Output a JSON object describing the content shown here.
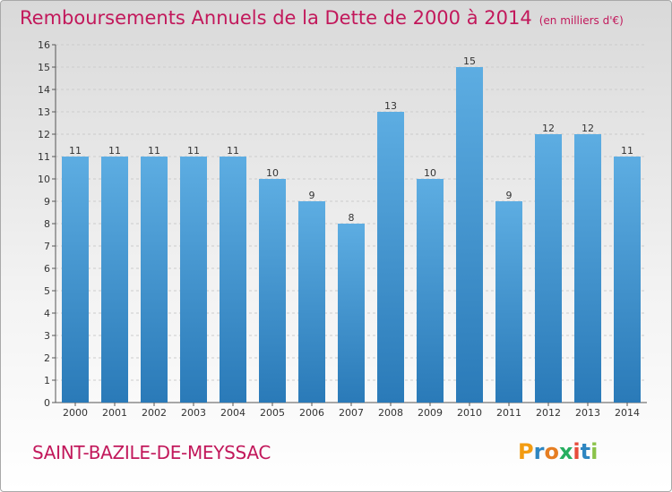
{
  "header": {
    "title": "Remboursements Annuels de la Dette de 2000 à 2014",
    "subtitle": "(en milliers d'€)"
  },
  "footer": {
    "commune": "SAINT-BAZILE-DE-MEYSSAC",
    "logo": "Proxiti"
  },
  "colors": {
    "title": "#c2185b",
    "bar_top": "#5dade2",
    "bar_bottom": "#2a7ab8",
    "grid": "#cccccc"
  },
  "chart_data": {
    "type": "bar",
    "title": "Remboursements Annuels de la Dette de 2000 à 2014",
    "subtitle": "(en milliers d'€)",
    "xlabel": "",
    "ylabel": "",
    "categories": [
      "2000",
      "2001",
      "2002",
      "2003",
      "2004",
      "2005",
      "2006",
      "2007",
      "2008",
      "2009",
      "2010",
      "2011",
      "2012",
      "2013",
      "2014"
    ],
    "values": [
      11,
      11,
      11,
      11,
      11,
      10,
      9,
      8,
      13,
      10,
      15,
      9,
      12,
      12,
      11
    ],
    "ylim": [
      0,
      16
    ],
    "yticks": [
      0,
      1,
      2,
      3,
      4,
      5,
      6,
      7,
      8,
      9,
      10,
      11,
      12,
      13,
      14,
      15,
      16
    ],
    "grid": true,
    "legend": "none"
  }
}
